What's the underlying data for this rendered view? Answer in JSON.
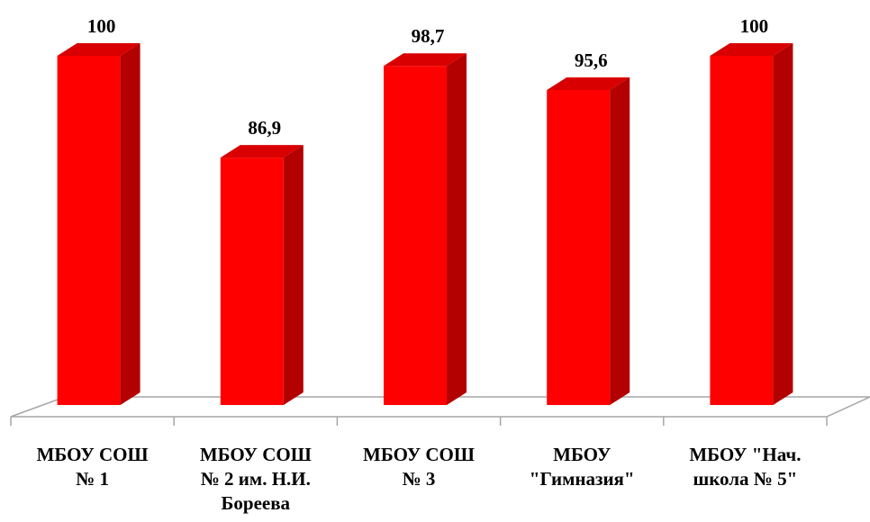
{
  "chart_data": {
    "type": "bar",
    "categories": [
      [
        "МБОУ СОШ",
        "№ 1"
      ],
      [
        "МБОУ СОШ",
        "№ 2 им. Н.И.",
        "Бореева"
      ],
      [
        "МБОУ СОШ",
        "№ 3"
      ],
      [
        "МБОУ",
        "\"Гимназия\""
      ],
      [
        "МБОУ \"Нач.",
        "школа № 5\""
      ]
    ],
    "values": [
      100,
      86.9,
      98.7,
      95.6,
      100
    ],
    "value_labels": [
      "100",
      "86,9",
      "98,7",
      "95,6",
      "100"
    ],
    "colors": {
      "bar_front": "#ff0000",
      "bar_side": "#b30000",
      "bar_top": "#d80000",
      "floor": "#ffffff",
      "floor_edge": "#a6a6a6"
    },
    "grid": false,
    "legend": "none"
  }
}
